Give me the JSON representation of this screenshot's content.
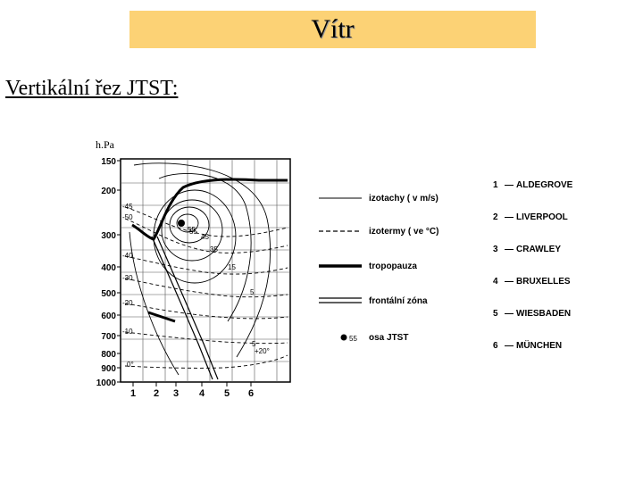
{
  "header": {
    "title": "Vítr"
  },
  "section": {
    "subtitle": "Vertikální řez JTST:"
  },
  "diagram": {
    "y_unit": "h.Pa",
    "pressure_levels": [
      "150",
      "200",
      "300",
      "400",
      "500",
      "600",
      "700",
      "800",
      "900",
      "1000"
    ],
    "x_ticks": [
      "1",
      "2",
      "3",
      "4",
      "5",
      "6"
    ],
    "temp_labels": [
      "-45",
      "-50",
      "-40",
      "-30",
      "-20",
      "-10",
      "0°",
      "+20°"
    ],
    "speed_labels": [
      "55",
      "45",
      "35",
      "15",
      "5",
      "5"
    ],
    "jet_label": "55"
  },
  "legend": [
    {
      "label": "izotachy ( v m/s)",
      "style": "thin"
    },
    {
      "label": "izotermy ( ve °C)",
      "style": "dashed"
    },
    {
      "label": "tropopauza",
      "style": "thick"
    },
    {
      "label": "frontální zóna",
      "style": "double"
    },
    {
      "label": "osa   JTST",
      "symbol": "ø55"
    }
  ],
  "stations": [
    {
      "num": "1",
      "name": "ALDEGROVE"
    },
    {
      "num": "2",
      "name": "LIVERPOOL"
    },
    {
      "num": "3",
      "name": "CRAWLEY"
    },
    {
      "num": "4",
      "name": "BRUXELLES"
    },
    {
      "num": "5",
      "name": "WIESBADEN"
    },
    {
      "num": "6",
      "name": "MÜNCHEN"
    }
  ],
  "colors": {
    "title_bg": "#fcd275",
    "ink": "#000000"
  }
}
